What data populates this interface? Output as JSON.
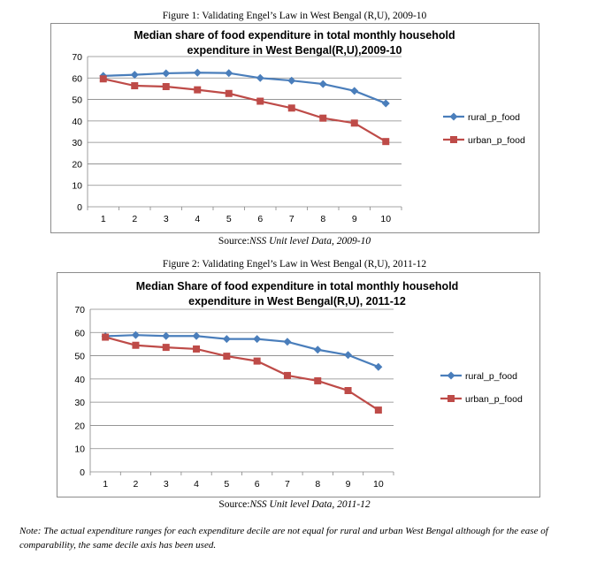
{
  "captions": {
    "fig1": "Figure 1: Validating Engel’s Law in West Bengal (R,U), 2009-10",
    "fig2": "Figure 2: Validating Engel’s Law in West Bengal (R,U), 2011-12"
  },
  "sources": {
    "fig1_prefix": "Source:",
    "fig1_text": "NSS Unit level Data, 2009-10",
    "fig2_prefix": "Source:",
    "fig2_text": "NSS Unit level Data, 2011-12"
  },
  "note": "Note: The actual expenditure ranges for each expenditure decile are not equal for rural and urban West Bengal although for the ease of comparability, the same decile axis has been used.",
  "colors": {
    "rural": "#4a7ebb",
    "urban": "#be4b48",
    "grid": "#868686"
  },
  "chart_data": [
    {
      "type": "line",
      "title": "Median share of food expenditure in total monthly household expenditure in West Bengal(R,U),2009-10",
      "title_lines": [
        "Median share of food expenditure in total monthly household",
        "expenditure in West Bengal(R,U),2009-10"
      ],
      "categories": [
        "1",
        "2",
        "3",
        "4",
        "5",
        "6",
        "7",
        "8",
        "9",
        "10"
      ],
      "ylim": [
        0,
        70
      ],
      "yticks": [
        0,
        10,
        20,
        30,
        40,
        50,
        60,
        70
      ],
      "xlabel": "",
      "ylabel": "",
      "grid": true,
      "legend": "right",
      "series": [
        {
          "name": "rural_p_food",
          "values": [
            61.0,
            61.5,
            62.2,
            62.5,
            62.3,
            60.0,
            58.8,
            57.2,
            54.0,
            48.2
          ]
        },
        {
          "name": "urban_p_food",
          "values": [
            59.6,
            56.4,
            56.0,
            54.5,
            52.8,
            49.2,
            46.0,
            41.3,
            39.0,
            30.4
          ]
        }
      ]
    },
    {
      "type": "line",
      "title": "Median Share of food expenditure in total monthly household expenditure in West Bengal(R,U), 2011-12",
      "title_lines": [
        "Median Share of food expenditure in total monthly household",
        "expenditure in West Bengal(R,U), 2011-12"
      ],
      "categories": [
        "1",
        "2",
        "3",
        "4",
        "5",
        "6",
        "7",
        "8",
        "9",
        "10"
      ],
      "ylim": [
        0,
        70
      ],
      "yticks": [
        0,
        10,
        20,
        30,
        40,
        50,
        60,
        70
      ],
      "xlabel": "",
      "ylabel": "",
      "grid": true,
      "legend": "right",
      "series": [
        {
          "name": "rural_p_food",
          "values": [
            58.4,
            58.9,
            58.5,
            58.5,
            57.2,
            57.2,
            56.0,
            52.6,
            50.3,
            45.2
          ]
        },
        {
          "name": "urban_p_food",
          "values": [
            58.0,
            54.5,
            53.6,
            52.9,
            49.8,
            47.7,
            41.5,
            39.2,
            35.0,
            26.6
          ]
        }
      ]
    }
  ]
}
